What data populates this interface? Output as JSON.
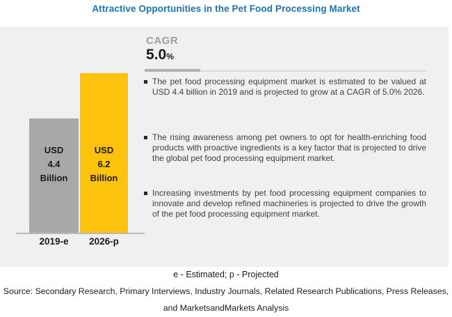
{
  "title": "Attractive Opportunities in the Pet Food Processing Market",
  "colors": {
    "title_blue": "#1a73b8",
    "panel_background": "#f0f0f0",
    "bar_2019": "#a8a8a8",
    "bar_2026": "#fdc20e",
    "body_text": "#404040"
  },
  "cagr": {
    "label": "CAGR",
    "value": "5.0",
    "unit": "%"
  },
  "chart_data": {
    "type": "bar",
    "title": "Attractive Opportunities in the Pet Food Processing Market",
    "categories": [
      "2019-e",
      "2026-p"
    ],
    "values": [
      4.4,
      6.2
    ],
    "unit": "USD Billion",
    "bar_labels": [
      "USD 4.4 Billion",
      "USD 6.2 Billion"
    ],
    "bar_colors": [
      "#a8a8a8",
      "#fdc20e"
    ],
    "cagr_percent": 5.0,
    "xlabel": "",
    "ylabel": "",
    "grid": false,
    "legend": false
  },
  "bars": [
    {
      "label_lines": "USD\n4.4\nBillion",
      "category": "2019-e",
      "value": 4.4
    },
    {
      "label_lines": "USD\n6.2\nBillion",
      "category": "2026-p",
      "value": 6.2
    }
  ],
  "bullets": [
    {
      "text": "The pet food processing equipment market is estimated to be valued at USD 4.4 billion in 2019 and is projected to grow at a CAGR of 5.0% 2026."
    },
    {
      "text": "The rising awareness among pet owners to opt for health-enriching food products with proactive ingredients is a key factor that is projected to drive the global pet food processing equipment market."
    },
    {
      "text": "Increasing investments by pet food processing equipment companies to innovate and develop refined machineries is projected to drive the growth of the pet food processing equipment market."
    }
  ],
  "footnote": "e - Estimated; p - Projected",
  "source": "Source: Secondary Research, Primary Interviews, Industry Journals, Related Research Publications, Press Releases, and MarketsandMarkets Analysis"
}
